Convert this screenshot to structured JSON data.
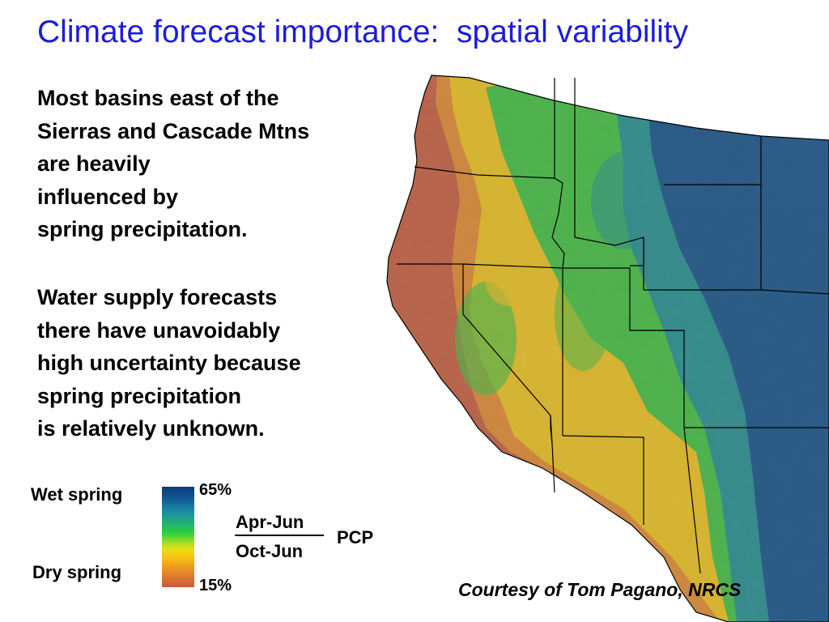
{
  "slide": {
    "title": "Climate forecast importance:  spatial variability",
    "paragraph1": [
      "Most basins east of the",
      "Sierras and Cascade Mtns",
      "are heavily",
      "influenced by",
      "spring precipitation."
    ],
    "paragraph2": [
      "Water supply forecasts",
      "there have unavoidably",
      "high uncertainty because",
      "spring precipitation",
      "is relatively unknown."
    ],
    "credit": "Courtesy of Tom Pagano, NRCS"
  },
  "legend": {
    "wet_label": "Wet spring",
    "dry_label": "Dry spring",
    "max_label": "65%",
    "min_label": "15%",
    "max_value": 65,
    "min_value": 15,
    "ratio_numerator": "Apr-Jun",
    "ratio_denominator": "Oct-Jun",
    "variable": "PCP",
    "color_scale": [
      "#0b3a78",
      "#1a8aa3",
      "#2ad13a",
      "#e8e015",
      "#ee9a1e",
      "#c95b3a"
    ]
  },
  "map": {
    "colors": {
      "ocean": "#ffffff",
      "dry": "#c95b3a",
      "orange": "#e58a2a",
      "yellow": "#f2c419",
      "green": "#3fc23c",
      "teal": "#1f8f8f",
      "wet": "#0f4f88",
      "boundary": "#000000"
    }
  }
}
